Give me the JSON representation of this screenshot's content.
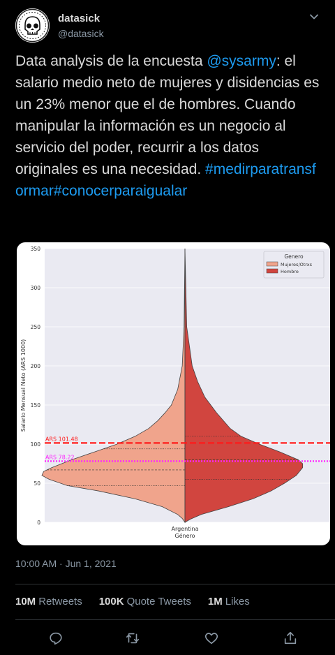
{
  "author": {
    "name": "datasick",
    "handle": "@datasick"
  },
  "tweet": {
    "text_before": "Data analysis de la encuesta ",
    "mention": "@sysarmy",
    "text_after": ": el salario medio neto de mujeres y disidencias es un 23% menor que el de hombres. Cuando manipular la información es un negocio al servicio del poder, recurrir a los datos originales es una necesidad. ",
    "hashtags": "#medirparatransformar#conocerparaigualar",
    "timestamp": "10:00 AM · Jun 1, 2021"
  },
  "stats": {
    "retweets_count": "10M",
    "retweets_label": "Retweets",
    "quotes_count": "100K",
    "quotes_label": "Quote Tweets",
    "likes_count": "1M",
    "likes_label": "Likes"
  },
  "actions": {
    "reply_icon": "reply-icon",
    "retweet_icon": "retweet-icon",
    "like_icon": "heart-icon",
    "share_icon": "share-icon"
  },
  "colors": {
    "background": "#000000",
    "link": "#1d9bf0",
    "secondary_text": "#8b98a5",
    "violin_left": "#f0a48c",
    "violin_right": "#d1453f",
    "line_hombre": "#ff1a1a",
    "line_mujeres": "#ff22ff"
  },
  "chart_data": {
    "type": "violin",
    "xlabel": "Género",
    "ylabel": "Salario Mensual Neto (ARS 1000)",
    "categories": [
      "Argentina"
    ],
    "ylim": [
      0,
      350
    ],
    "yticks": [
      0,
      50,
      100,
      150,
      200,
      250,
      300,
      350
    ],
    "legend_title": "Genero",
    "legend_position": "top-right",
    "series": [
      {
        "name": "Mujeres/Otrxs",
        "color": "#f0a48c",
        "side": "left",
        "quartiles": [
          47,
          67,
          94
        ],
        "density": [
          [
            0,
            0
          ],
          [
            5,
            3
          ],
          [
            10,
            8
          ],
          [
            20,
            25
          ],
          [
            30,
            55
          ],
          [
            40,
            95
          ],
          [
            47,
            130
          ],
          [
            55,
            150
          ],
          [
            60,
            158
          ],
          [
            65,
            156
          ],
          [
            70,
            147
          ],
          [
            80,
            125
          ],
          [
            90,
            100
          ],
          [
            100,
            75
          ],
          [
            110,
            55
          ],
          [
            120,
            40
          ],
          [
            130,
            30
          ],
          [
            140,
            22
          ],
          [
            150,
            15
          ],
          [
            170,
            8
          ],
          [
            200,
            3
          ],
          [
            250,
            1
          ],
          [
            350,
            0
          ]
        ]
      },
      {
        "name": "Hombre",
        "color": "#d1453f",
        "side": "right",
        "quartiles": [
          55,
          80,
          110
        ],
        "density": [
          [
            0,
            0
          ],
          [
            4,
            6
          ],
          [
            10,
            18
          ],
          [
            20,
            48
          ],
          [
            30,
            75
          ],
          [
            40,
            95
          ],
          [
            50,
            110
          ],
          [
            60,
            123
          ],
          [
            70,
            130
          ],
          [
            75,
            130
          ],
          [
            80,
            125
          ],
          [
            90,
            105
          ],
          [
            100,
            82
          ],
          [
            110,
            62
          ],
          [
            120,
            50
          ],
          [
            140,
            35
          ],
          [
            160,
            22
          ],
          [
            180,
            14
          ],
          [
            200,
            8
          ],
          [
            250,
            2
          ],
          [
            350,
            0
          ]
        ]
      }
    ],
    "hlines": [
      {
        "label": "ARS 101.48",
        "y": 101.48,
        "color": "#ff1a1a",
        "style": "dashed"
      },
      {
        "label": "ARS 78.22",
        "y": 78.22,
        "color": "#ff22ff",
        "style": "dotted"
      }
    ]
  }
}
